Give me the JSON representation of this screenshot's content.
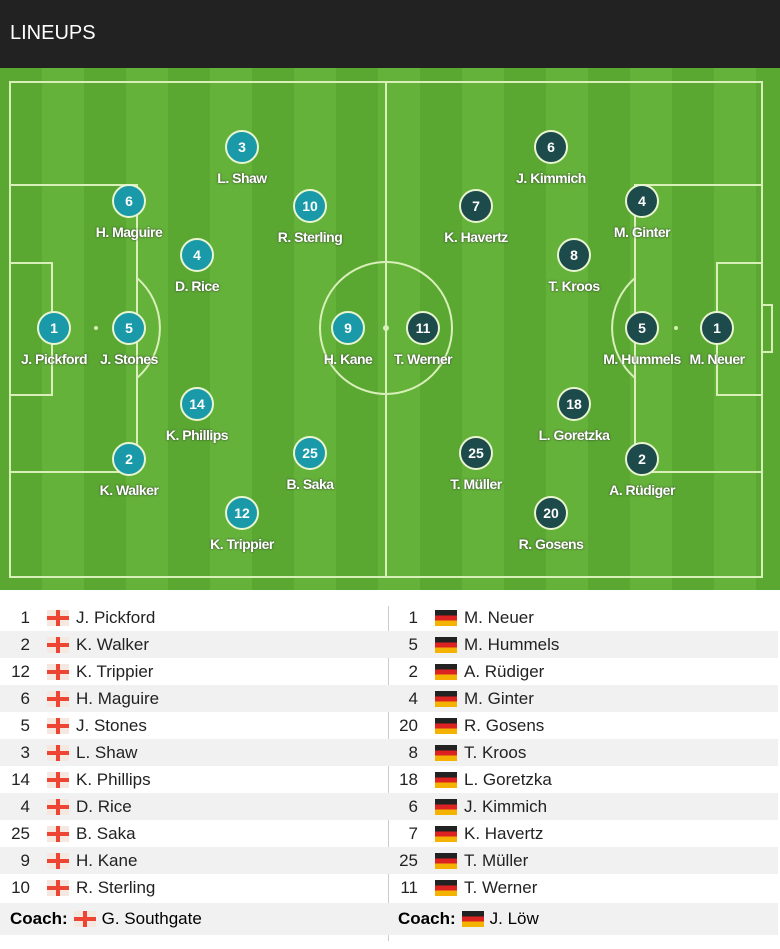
{
  "header": {
    "title": "LINEUPS"
  },
  "colors": {
    "home": "#1a9aa8",
    "away": "#1d4a4a"
  },
  "home": {
    "coach_label": "Coach:",
    "coach": "G. Southgate",
    "flag": "england-flag-icon",
    "players": [
      {
        "num": "1",
        "name": "J. Pickford"
      },
      {
        "num": "2",
        "name": "K. Walker"
      },
      {
        "num": "12",
        "name": "K. Trippier"
      },
      {
        "num": "6",
        "name": "H. Maguire"
      },
      {
        "num": "5",
        "name": "J. Stones"
      },
      {
        "num": "3",
        "name": "L. Shaw"
      },
      {
        "num": "14",
        "name": "K. Phillips"
      },
      {
        "num": "4",
        "name": "D. Rice"
      },
      {
        "num": "25",
        "name": "B. Saka"
      },
      {
        "num": "9",
        "name": "H. Kane"
      },
      {
        "num": "10",
        "name": "R. Sterling"
      }
    ]
  },
  "away": {
    "coach_label": "Coach:",
    "coach": "J. Löw",
    "flag": "germany-flag-icon",
    "players": [
      {
        "num": "1",
        "name": "M. Neuer"
      },
      {
        "num": "5",
        "name": "M. Hummels"
      },
      {
        "num": "2",
        "name": "A. Rüdiger"
      },
      {
        "num": "4",
        "name": "M. Ginter"
      },
      {
        "num": "20",
        "name": "R. Gosens"
      },
      {
        "num": "8",
        "name": "T. Kroos"
      },
      {
        "num": "18",
        "name": "L. Goretzka"
      },
      {
        "num": "6",
        "name": "J. Kimmich"
      },
      {
        "num": "7",
        "name": "K. Havertz"
      },
      {
        "num": "25",
        "name": "T. Müller"
      },
      {
        "num": "11",
        "name": "T. Werner"
      }
    ]
  }
}
